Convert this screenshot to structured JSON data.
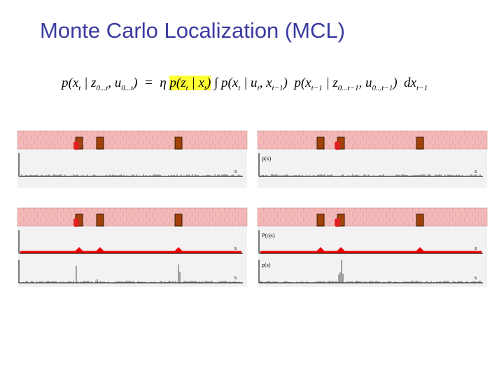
{
  "title": "Monte Carlo Localization (MCL)",
  "equation": {
    "parts": [
      {
        "text": "p(x",
        "sub": "t"
      },
      {
        "text": " | z",
        "sub": "0...t"
      },
      {
        "text": ", u",
        "sub": "0...t"
      },
      {
        "text": ")  =  "
      },
      {
        "text": "η "
      },
      {
        "text": "p(z",
        "sub": "t",
        "highlight": true
      },
      {
        "text": " | x",
        "sub": "t",
        "highlight": true
      },
      {
        "text": ")",
        "highlight": true
      },
      {
        "text": " ∫ "
      },
      {
        "text": "p(x",
        "sub": "t"
      },
      {
        "text": " | u",
        "sub": "t"
      },
      {
        "text": ", x",
        "sub": "t−1"
      },
      {
        "text": ")  p(x",
        "sub": "t−1"
      },
      {
        "text": " | z",
        "sub": "0...t−1"
      },
      {
        "text": ", u",
        "sub": "0...t−1"
      },
      {
        "text": ")  dx",
        "sub": "t−1"
      }
    ]
  },
  "panels": [
    {
      "rows": [
        {
          "x_label": "s"
        }
      ]
    },
    {
      "rows": [
        {
          "y_label": "p(x)",
          "x_label": "s"
        }
      ]
    },
    {
      "rows": [
        {
          "x_label": "s"
        },
        {
          "x_label": "s"
        }
      ]
    },
    {
      "rows": [
        {
          "y_label": "P(o|s)",
          "x_label": "s"
        },
        {
          "y_label": "p(s)",
          "x_label": "s"
        }
      ]
    }
  ]
}
